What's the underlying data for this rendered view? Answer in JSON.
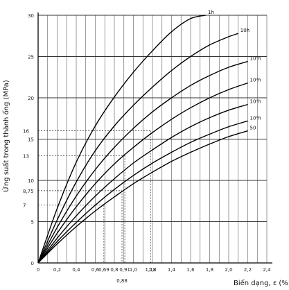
{
  "chart_data": {
    "type": "line",
    "title": "",
    "xlabel": "Biến dạng, ε (%)",
    "ylabel": "Ứng suất trong thành ống (MPa)",
    "xlim": [
      0,
      2.4
    ],
    "ylim": [
      0,
      30
    ],
    "x_ticks": [
      "0",
      "0,2",
      "0,4",
      "0,6",
      "0,8",
      "1,0",
      "1,2",
      "1,4",
      "1,6",
      "1,8",
      "2,0",
      "2,2",
      "2,4"
    ],
    "y_ticks": [
      "0",
      "5",
      "10",
      "15",
      "20",
      "25",
      "30"
    ],
    "extra_y_ticks": [
      {
        "value": 7,
        "label": "7"
      },
      {
        "value": 8.75,
        "label": "8,75"
      },
      {
        "value": 13,
        "label": "13"
      },
      {
        "value": 16,
        "label": "16"
      }
    ],
    "extra_x_ticks": [
      {
        "value": 0.69,
        "label": "0,69"
      },
      {
        "value": 0.88,
        "label": "0,88"
      },
      {
        "value": 0.91,
        "label": "0,91"
      },
      {
        "value": 1.18,
        "label": "1,18"
      }
    ],
    "series": [
      {
        "name": "1h",
        "x": [
          0,
          0.2,
          0.4,
          0.6,
          0.8,
          1.0,
          1.2,
          1.4,
          1.6,
          1.76
        ],
        "y": [
          0,
          6.6,
          12.2,
          16.6,
          20.1,
          23.1,
          25.7,
          28.0,
          29.6,
          30.0
        ]
      },
      {
        "name": "10h",
        "x": [
          0,
          0.2,
          0.4,
          0.6,
          0.8,
          1.0,
          1.2,
          1.4,
          1.6,
          1.8,
          2.0,
          2.1
        ],
        "y": [
          0,
          5.2,
          9.8,
          13.6,
          16.6,
          19.1,
          21.3,
          23.3,
          25.0,
          26.4,
          27.4,
          27.8
        ]
      },
      {
        "name": "10²h",
        "x": [
          0,
          0.2,
          0.4,
          0.6,
          0.8,
          1.0,
          1.2,
          1.4,
          1.6,
          1.8,
          2.0,
          2.2
        ],
        "y": [
          0,
          4.3,
          8.1,
          11.3,
          14.0,
          16.3,
          18.3,
          20.0,
          21.5,
          22.7,
          23.7,
          24.4
        ]
      },
      {
        "name": "10³h",
        "x": [
          0,
          0.2,
          0.4,
          0.6,
          0.8,
          1.0,
          1.2,
          1.4,
          1.6,
          1.8,
          2.0,
          2.2
        ],
        "y": [
          0,
          3.6,
          6.8,
          9.6,
          12.0,
          14.0,
          15.8,
          17.4,
          18.8,
          20.0,
          21.0,
          21.8
        ]
      },
      {
        "name": "10⁴h",
        "x": [
          0,
          0.2,
          0.4,
          0.6,
          0.8,
          1.0,
          1.2,
          1.4,
          1.6,
          1.8,
          2.0,
          2.2
        ],
        "y": [
          0,
          3.0,
          5.7,
          8.1,
          10.2,
          12.1,
          13.7,
          15.2,
          16.5,
          17.6,
          18.5,
          19.2
        ]
      },
      {
        "name": "10⁵h",
        "x": [
          0,
          0.2,
          0.4,
          0.6,
          0.8,
          1.0,
          1.2,
          1.4,
          1.6,
          1.8,
          2.0,
          2.2
        ],
        "y": [
          0,
          2.6,
          4.9,
          7.0,
          8.9,
          10.6,
          12.1,
          13.4,
          14.6,
          15.6,
          16.5,
          17.2
        ]
      },
      {
        "name": "50",
        "x": [
          0,
          0.2,
          0.4,
          0.6,
          0.8,
          1.0,
          1.2,
          1.4,
          1.6,
          1.8,
          2.0,
          2.2
        ],
        "y": [
          0,
          2.3,
          4.4,
          6.3,
          8.0,
          9.6,
          11.0,
          12.3,
          13.4,
          14.4,
          15.3,
          16.0
        ]
      }
    ],
    "reference_lines": [
      {
        "x": 0.69,
        "y": 7
      },
      {
        "x": 0.88,
        "y": 8.75
      },
      {
        "x": 0.91,
        "y": 13
      },
      {
        "x": 1.18,
        "y": 16
      }
    ],
    "grid": true,
    "legend": "none"
  }
}
